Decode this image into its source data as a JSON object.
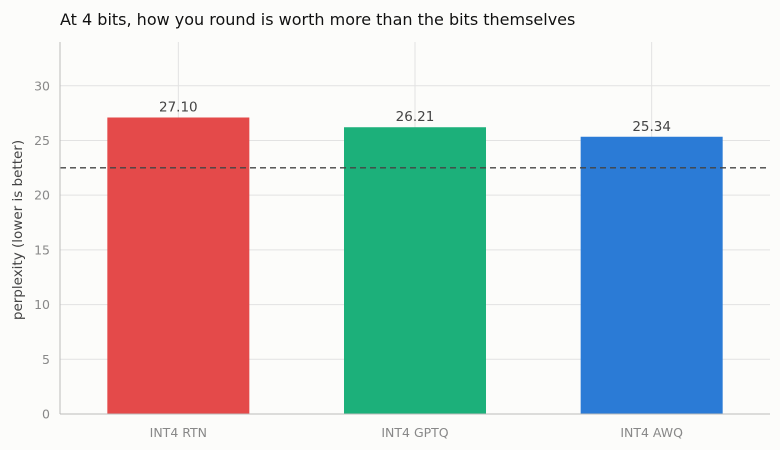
{
  "chart_data": {
    "type": "bar",
    "title": "At 4 bits, how you round is worth more than the bits themselves",
    "xlabel": "",
    "ylabel": "perplexity (lower is better)",
    "categories": [
      "INT4 RTN",
      "INT4 GPTQ",
      "INT4 AWQ"
    ],
    "values": [
      27.1,
      26.21,
      25.34
    ],
    "value_labels": [
      "27.10",
      "26.21",
      "25.34"
    ],
    "colors": [
      "#e44a4a",
      "#1cb07a",
      "#2b7bd6"
    ],
    "ylim": [
      0,
      34
    ],
    "yticks": [
      0,
      5,
      10,
      15,
      20,
      25,
      30
    ],
    "reference_line": 22.5,
    "grid": true
  }
}
